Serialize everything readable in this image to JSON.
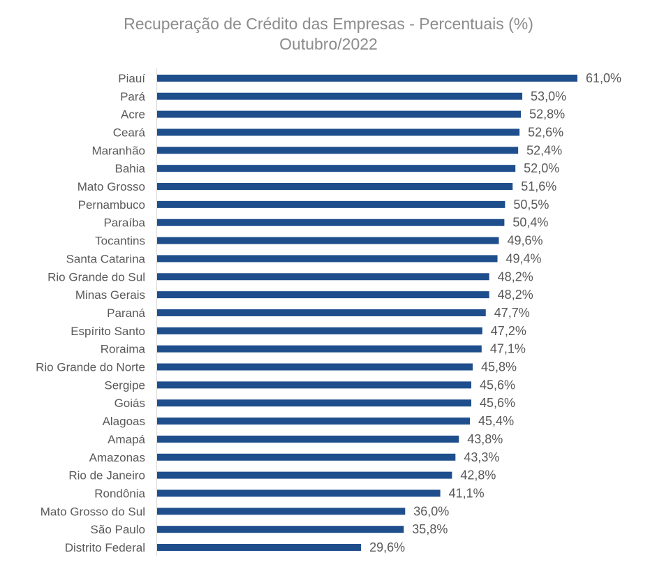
{
  "chart_data": {
    "type": "bar",
    "orientation": "horizontal",
    "title": "Recuperação de Crédito das Empresas - Percentuais (%)",
    "subtitle": "Outubro/2022",
    "categories": [
      "Piauí",
      "Pará",
      "Acre",
      "Ceará",
      "Maranhão",
      "Bahia",
      "Mato Grosso",
      "Pernambuco",
      "Paraíba",
      "Tocantins",
      "Santa Catarina",
      "Rio Grande do Sul",
      "Minas Gerais",
      "Paraná",
      "Espírito Santo",
      "Roraima",
      "Rio Grande do Norte",
      "Sergipe",
      "Goiás",
      "Alagoas",
      "Amapá",
      "Amazonas",
      "Rio de Janeiro",
      "Rondônia",
      "Mato Grosso do Sul",
      "São Paulo",
      "Distrito Federal"
    ],
    "values": [
      61.0,
      53.0,
      52.8,
      52.6,
      52.4,
      52.0,
      51.6,
      50.5,
      50.4,
      49.6,
      49.4,
      48.2,
      48.2,
      47.7,
      47.2,
      47.1,
      45.8,
      45.6,
      45.6,
      45.4,
      43.8,
      43.3,
      42.8,
      41.1,
      36.0,
      35.8,
      29.6
    ],
    "value_labels": [
      "61,0%",
      "53,0%",
      "52,8%",
      "52,6%",
      "52,4%",
      "52,0%",
      "51,6%",
      "50,5%",
      "50,4%",
      "49,6%",
      "49,4%",
      "48,2%",
      "48,2%",
      "47,7%",
      "47,2%",
      "47,1%",
      "45,8%",
      "45,6%",
      "45,6%",
      "45,4%",
      "43,8%",
      "43,3%",
      "42,8%",
      "41,1%",
      "36,0%",
      "35,8%",
      "29,6%"
    ],
    "xlim": [
      0,
      61.0
    ],
    "grid": false,
    "legend": "none",
    "bar_color": "#1f4e8c"
  }
}
